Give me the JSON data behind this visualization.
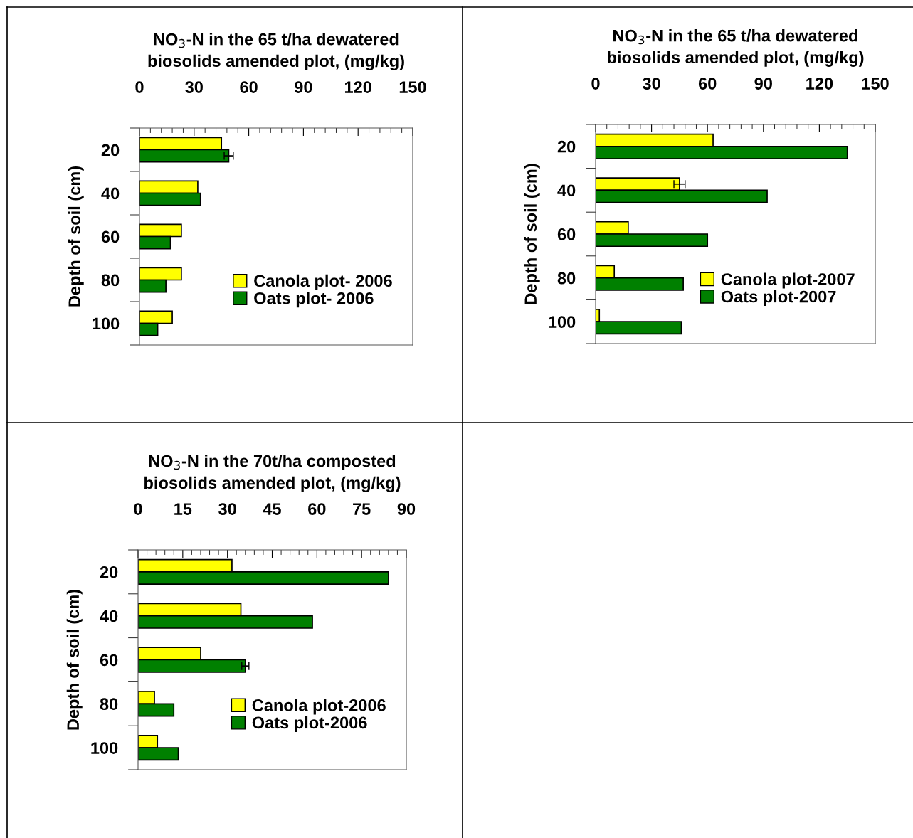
{
  "chart_data": [
    {
      "type": "bar",
      "orientation": "horizontal",
      "title": "NO$_{3}$-N in the 65 t/ha dewatered\nbiosolids amended plot, (mg/kg)",
      "ylabel": "Depth of soil (cm)",
      "categories": [
        "20",
        "40",
        "60",
        "80",
        "100"
      ],
      "xlim": [
        0,
        150
      ],
      "xticks": [
        0,
        30,
        60,
        90,
        120,
        150
      ],
      "grid": false,
      "legend": "bottom right",
      "series": [
        {
          "name": "Canola plot- 2006",
          "color": "#ffff00",
          "values": [
            45,
            32,
            23,
            23,
            18
          ],
          "errors": [
            null,
            null,
            null,
            null,
            null
          ]
        },
        {
          "name": "Oats plot- 2006",
          "color": "#008000",
          "values": [
            49,
            33.5,
            17,
            14.5,
            10
          ],
          "errors": [
            2.5,
            null,
            null,
            null,
            null
          ]
        }
      ]
    },
    {
      "type": "bar",
      "orientation": "horizontal",
      "title": "NO$_{3}$-N in the 65 t/ha dewatered\nbiosolids amended plot, (mg/kg)",
      "ylabel": "Depth of soil (cm)",
      "categories": [
        "20",
        "40",
        "60",
        "80",
        "100"
      ],
      "xlim": [
        0,
        150
      ],
      "xticks": [
        0,
        30,
        60,
        90,
        120,
        150
      ],
      "grid": false,
      "legend": "bottom right",
      "series": [
        {
          "name": "Canola plot-2007",
          "color": "#ffff00",
          "values": [
            63,
            45,
            17.5,
            10,
            2
          ],
          "errors": [
            null,
            3,
            null,
            null,
            null
          ]
        },
        {
          "name": "Oats plot-2007",
          "color": "#008000",
          "values": [
            135,
            92,
            60,
            47,
            46
          ],
          "errors": [
            null,
            null,
            null,
            null,
            null
          ]
        }
      ]
    },
    {
      "type": "bar",
      "orientation": "horizontal",
      "title": "NO$_{3}$-N in the 70t/ha composted\nbiosolids amended plot, (mg/kg)",
      "ylabel": "Depth of soil (cm)",
      "categories": [
        "20",
        "40",
        "60",
        "80",
        "100"
      ],
      "xlim": [
        0,
        90
      ],
      "xticks": [
        0,
        15,
        30,
        45,
        60,
        75,
        90
      ],
      "grid": false,
      "legend": "bottom right",
      "series": [
        {
          "name": "Canola plot-2006",
          "color": "#ffff00",
          "values": [
            31.5,
            34.5,
            21,
            5.5,
            6.5
          ],
          "errors": [
            null,
            null,
            null,
            null,
            null
          ]
        },
        {
          "name": "Oats plot-2006",
          "color": "#008000",
          "values": [
            84,
            58.5,
            36,
            12,
            13.5
          ],
          "errors": [
            null,
            null,
            1.2,
            null,
            null
          ]
        }
      ]
    }
  ]
}
